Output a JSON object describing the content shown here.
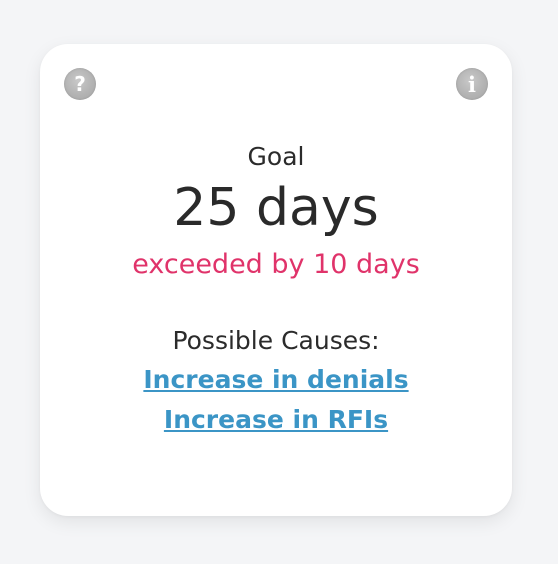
{
  "card": {
    "goal_label": "Goal",
    "goal_value": "25 days",
    "status_text": "exceeded by 10 days",
    "causes_label": "Possible Causes:",
    "causes": [
      "Increase in denials",
      "Increase in RFIs"
    ],
    "icons": {
      "help": "help-icon",
      "info": "info-icon"
    }
  },
  "colors": {
    "exceeded": "#e0336a",
    "link": "#3b95c6",
    "icon": "#b3b3b3"
  }
}
